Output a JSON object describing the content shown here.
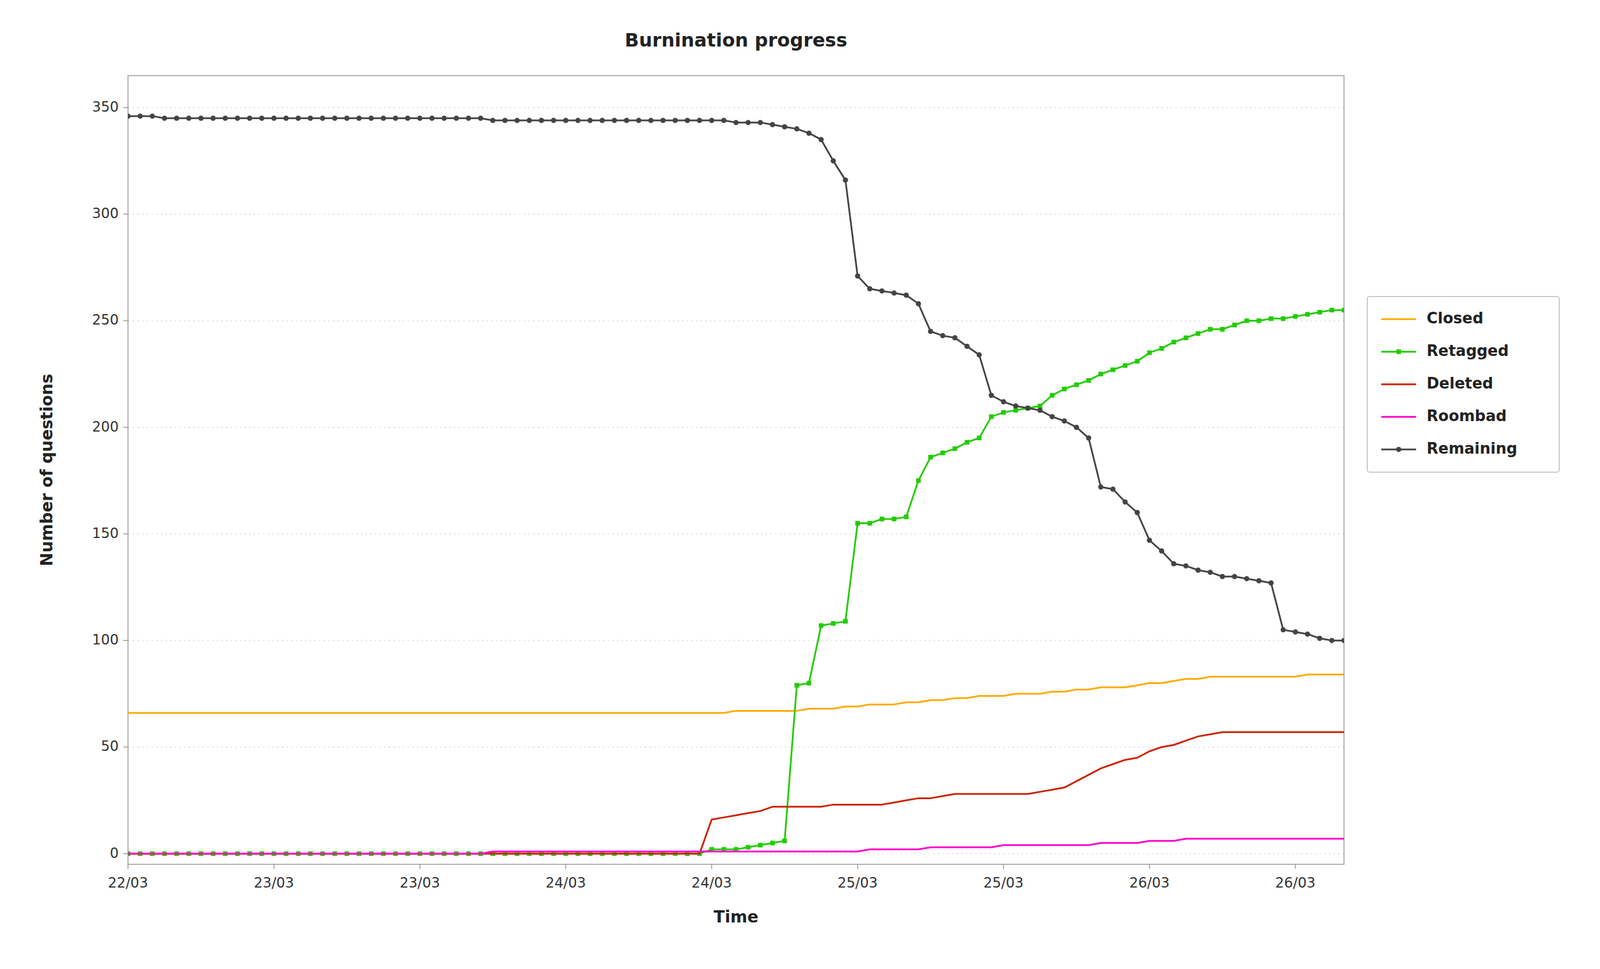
{
  "chart_data": {
    "type": "line",
    "title": "Burnination progress",
    "x_label": "Time",
    "y_label": "Number of questions",
    "x": [
      0,
      1,
      2,
      3,
      4,
      5,
      6,
      7,
      8,
      9,
      10,
      11,
      12,
      13,
      14,
      15,
      16,
      17,
      18,
      19,
      20,
      21,
      22,
      23,
      24,
      25,
      26,
      27,
      28,
      29,
      30,
      31,
      32,
      33,
      34,
      35,
      36,
      37,
      38,
      39,
      40,
      41,
      42,
      43,
      44,
      45,
      46,
      47,
      48,
      49,
      50,
      51,
      52,
      53,
      54,
      55,
      56,
      57,
      58,
      59,
      60,
      61,
      62,
      63,
      64,
      65,
      66,
      67,
      68,
      69,
      70,
      71,
      72,
      73,
      74,
      75,
      76,
      77,
      78,
      79,
      80,
      81,
      82,
      83,
      84,
      85,
      86,
      87,
      88,
      89,
      90,
      91,
      92,
      93,
      94,
      95,
      96,
      97,
      98,
      99,
      100
    ],
    "xlim": [
      0,
      100
    ],
    "xticks": [
      {
        "value": 0,
        "label": "22/03"
      },
      {
        "value": 12,
        "label": "23/03"
      },
      {
        "value": 24,
        "label": "23/03"
      },
      {
        "value": 36,
        "label": "24/03"
      },
      {
        "value": 48,
        "label": "24/03"
      },
      {
        "value": 60,
        "label": "25/03"
      },
      {
        "value": 72,
        "label": "25/03"
      },
      {
        "value": 84,
        "label": "26/03"
      },
      {
        "value": 96,
        "label": "26/03"
      }
    ],
    "ylim": [
      -5,
      365
    ],
    "yticks": [
      0,
      50,
      100,
      150,
      200,
      250,
      300,
      350
    ],
    "grid": true,
    "legend": "right",
    "series": [
      {
        "name": "Closed",
        "color": "#ffaa00",
        "values": [
          66,
          66,
          66,
          66,
          66,
          66,
          66,
          66,
          66,
          66,
          66,
          66,
          66,
          66,
          66,
          66,
          66,
          66,
          66,
          66,
          66,
          66,
          66,
          66,
          66,
          66,
          66,
          66,
          66,
          66,
          66,
          66,
          66,
          66,
          66,
          66,
          66,
          66,
          66,
          66,
          66,
          66,
          66,
          66,
          66,
          66,
          66,
          66,
          66,
          66,
          67,
          67,
          67,
          67,
          67,
          67,
          68,
          68,
          68,
          69,
          69,
          70,
          70,
          70,
          71,
          71,
          72,
          72,
          73,
          73,
          74,
          74,
          74,
          75,
          75,
          75,
          76,
          76,
          77,
          77,
          78,
          78,
          78,
          79,
          80,
          80,
          81,
          82,
          82,
          83,
          83,
          83,
          83,
          83,
          83,
          83,
          83,
          84,
          84,
          84,
          84
        ]
      },
      {
        "name": "Retagged",
        "color": "#22cc00",
        "marker": "square",
        "values": [
          0,
          0,
          0,
          0,
          0,
          0,
          0,
          0,
          0,
          0,
          0,
          0,
          0,
          0,
          0,
          0,
          0,
          0,
          0,
          0,
          0,
          0,
          0,
          0,
          0,
          0,
          0,
          0,
          0,
          0,
          0,
          0,
          0,
          0,
          0,
          0,
          0,
          0,
          0,
          0,
          0,
          0,
          0,
          0,
          0,
          0,
          0,
          0,
          2,
          2,
          2,
          3,
          4,
          5,
          6,
          79,
          80,
          107,
          108,
          109,
          155,
          155,
          157,
          157,
          158,
          175,
          186,
          188,
          190,
          193,
          195,
          205,
          207,
          208,
          209,
          210,
          215,
          218,
          220,
          222,
          225,
          227,
          229,
          231,
          235,
          237,
          240,
          242,
          244,
          246,
          246,
          248,
          250,
          250,
          251,
          251,
          252,
          253,
          254,
          255,
          255
        ]
      },
      {
        "name": "Deleted",
        "color": "#cc2200",
        "values": [
          0,
          0,
          0,
          0,
          0,
          0,
          0,
          0,
          0,
          0,
          0,
          0,
          0,
          0,
          0,
          0,
          0,
          0,
          0,
          0,
          0,
          0,
          0,
          0,
          0,
          0,
          0,
          0,
          0,
          0,
          0,
          0,
          0,
          0,
          0,
          0,
          0,
          0,
          0,
          0,
          0,
          0,
          0,
          0,
          0,
          0,
          0,
          0,
          16,
          17,
          18,
          19,
          20,
          22,
          22,
          22,
          22,
          22,
          23,
          23,
          23,
          23,
          23,
          24,
          25,
          26,
          26,
          27,
          28,
          28,
          28,
          28,
          28,
          28,
          28,
          29,
          30,
          31,
          34,
          37,
          40,
          42,
          44,
          45,
          48,
          50,
          51,
          53,
          55,
          56,
          57,
          57,
          57,
          57,
          57,
          57,
          57,
          57,
          57,
          57,
          57
        ]
      },
      {
        "name": "Roombad",
        "color": "#ff00cc",
        "values": [
          0,
          0,
          0,
          0,
          0,
          0,
          0,
          0,
          0,
          0,
          0,
          0,
          0,
          0,
          0,
          0,
          0,
          0,
          0,
          0,
          0,
          0,
          0,
          0,
          0,
          0,
          0,
          0,
          0,
          0,
          1,
          1,
          1,
          1,
          1,
          1,
          1,
          1,
          1,
          1,
          1,
          1,
          1,
          1,
          1,
          1,
          1,
          1,
          1,
          1,
          1,
          1,
          1,
          1,
          1,
          1,
          1,
          1,
          1,
          1,
          1,
          2,
          2,
          2,
          2,
          2,
          3,
          3,
          3,
          3,
          3,
          3,
          4,
          4,
          4,
          4,
          4,
          4,
          4,
          4,
          5,
          5,
          5,
          5,
          6,
          6,
          6,
          7,
          7,
          7,
          7,
          7,
          7,
          7,
          7,
          7,
          7,
          7,
          7,
          7,
          7
        ]
      },
      {
        "name": "Remaining",
        "color": "#444444",
        "marker": "circle",
        "values": [
          346,
          346,
          346,
          345,
          345,
          345,
          345,
          345,
          345,
          345,
          345,
          345,
          345,
          345,
          345,
          345,
          345,
          345,
          345,
          345,
          345,
          345,
          345,
          345,
          345,
          345,
          345,
          345,
          345,
          345,
          344,
          344,
          344,
          344,
          344,
          344,
          344,
          344,
          344,
          344,
          344,
          344,
          344,
          344,
          344,
          344,
          344,
          344,
          344,
          344,
          343,
          343,
          343,
          342,
          341,
          340,
          338,
          335,
          325,
          316,
          271,
          265,
          264,
          263,
          262,
          258,
          245,
          243,
          242,
          238,
          234,
          215,
          212,
          210,
          209,
          208,
          205,
          203,
          200,
          195,
          172,
          171,
          165,
          160,
          147,
          142,
          136,
          135,
          133,
          132,
          130,
          130,
          129,
          128,
          127,
          105,
          104,
          103,
          101,
          100,
          100
        ]
      }
    ]
  }
}
